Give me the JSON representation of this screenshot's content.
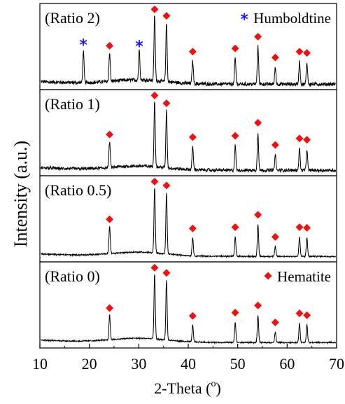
{
  "chart_data": {
    "type": "line",
    "xlabel": "2-Theta (",
    "xlabel_sup": "o",
    "xlabel_close": ")",
    "ylabel": "Intensity (a.u.)",
    "xlim": [
      10,
      70
    ],
    "xticks": [
      10,
      20,
      30,
      40,
      50,
      60,
      70
    ],
    "panels": [
      {
        "label": "(Ratio 2)",
        "noise": 0.3,
        "peaks": [
          {
            "x": 18.8,
            "h": 0.48,
            "marker": "star"
          },
          {
            "x": 24.1,
            "h": 0.44,
            "marker": "diamond"
          },
          {
            "x": 30.1,
            "h": 0.46,
            "marker": "star"
          },
          {
            "x": 33.2,
            "h": 1.0,
            "marker": "diamond"
          },
          {
            "x": 35.6,
            "h": 0.9,
            "marker": "diamond"
          },
          {
            "x": 40.9,
            "h": 0.35,
            "marker": "diamond"
          },
          {
            "x": 49.5,
            "h": 0.4,
            "marker": "diamond"
          },
          {
            "x": 54.1,
            "h": 0.58,
            "marker": "diamond"
          },
          {
            "x": 57.6,
            "h": 0.26,
            "marker": "diamond"
          },
          {
            "x": 62.5,
            "h": 0.35,
            "marker": "diamond"
          },
          {
            "x": 64.0,
            "h": 0.33,
            "marker": "diamond"
          }
        ]
      },
      {
        "label": "(Ratio 1)",
        "noise": 0.26,
        "peaks": [
          {
            "x": 24.1,
            "h": 0.4,
            "marker": "diamond"
          },
          {
            "x": 33.2,
            "h": 1.0,
            "marker": "diamond"
          },
          {
            "x": 35.6,
            "h": 0.88,
            "marker": "diamond"
          },
          {
            "x": 40.9,
            "h": 0.36,
            "marker": "diamond"
          },
          {
            "x": 49.5,
            "h": 0.38,
            "marker": "diamond"
          },
          {
            "x": 54.1,
            "h": 0.58,
            "marker": "diamond"
          },
          {
            "x": 57.6,
            "h": 0.24,
            "marker": "diamond"
          },
          {
            "x": 62.5,
            "h": 0.34,
            "marker": "diamond"
          },
          {
            "x": 64.0,
            "h": 0.32,
            "marker": "diamond"
          }
        ]
      },
      {
        "label": "(Ratio 0.5)",
        "noise": 0.1,
        "peaks": [
          {
            "x": 24.1,
            "h": 0.42,
            "marker": "diamond"
          },
          {
            "x": 33.2,
            "h": 1.0,
            "marker": "diamond"
          },
          {
            "x": 35.6,
            "h": 0.94,
            "marker": "diamond"
          },
          {
            "x": 40.9,
            "h": 0.28,
            "marker": "diamond"
          },
          {
            "x": 49.5,
            "h": 0.3,
            "marker": "diamond"
          },
          {
            "x": 54.1,
            "h": 0.49,
            "marker": "diamond"
          },
          {
            "x": 57.6,
            "h": 0.15,
            "marker": "diamond"
          },
          {
            "x": 62.5,
            "h": 0.3,
            "marker": "diamond"
          },
          {
            "x": 64.0,
            "h": 0.29,
            "marker": "diamond"
          }
        ]
      },
      {
        "label": "(Ratio 0)",
        "noise": 0.09,
        "peaks": [
          {
            "x": 24.1,
            "h": 0.38,
            "marker": "diamond"
          },
          {
            "x": 33.2,
            "h": 1.0,
            "marker": "diamond"
          },
          {
            "x": 35.6,
            "h": 0.92,
            "marker": "diamond"
          },
          {
            "x": 40.9,
            "h": 0.26,
            "marker": "diamond"
          },
          {
            "x": 49.5,
            "h": 0.31,
            "marker": "diamond"
          },
          {
            "x": 54.1,
            "h": 0.42,
            "marker": "diamond"
          },
          {
            "x": 57.6,
            "h": 0.16,
            "marker": "diamond"
          },
          {
            "x": 62.5,
            "h": 0.3,
            "marker": "diamond"
          },
          {
            "x": 64.0,
            "h": 0.27,
            "marker": "diamond"
          }
        ]
      }
    ],
    "legend": [
      {
        "label": "Humboldtine",
        "marker": "star",
        "color": "#1a1aff",
        "panel": 0
      },
      {
        "label": "Hematite",
        "marker": "diamond",
        "color": "#ee1111",
        "panel": 3
      }
    ],
    "line_color": "#000000"
  }
}
